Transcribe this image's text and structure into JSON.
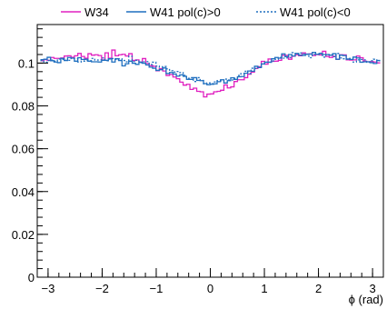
{
  "chart_data": {
    "type": "line",
    "style": "step-histogram",
    "title": "",
    "xlabel": "ϕ (rad)",
    "ylabel": "",
    "xlim": [
      -3.2,
      3.2
    ],
    "ylim": [
      0,
      0.118
    ],
    "grid": false,
    "legend_position": "top",
    "x_ticks": [
      -3,
      -2,
      -1,
      0,
      1,
      2,
      3
    ],
    "x_tick_labels": [
      "−3",
      "−2",
      "−1",
      "0",
      "1",
      "2",
      "3"
    ],
    "y_ticks": [
      0,
      0.02,
      0.04,
      0.06,
      0.08,
      0.1
    ],
    "y_tick_labels": [
      "0",
      "0.02",
      "0.04",
      "0.06",
      "0.08",
      "0.1"
    ],
    "bins": {
      "min": -3.14159,
      "max": 3.14159,
      "count": 100
    },
    "series": [
      {
        "name": "W34",
        "color": "#e020c0",
        "dash": "solid",
        "values": [
          0.1011,
          0.1016,
          0.1013,
          0.1026,
          0.1022,
          0.1022,
          0.1024,
          0.1033,
          0.1034,
          0.1027,
          0.1034,
          0.1045,
          0.1031,
          0.1023,
          0.1044,
          0.1037,
          0.1039,
          0.1035,
          0.1015,
          0.1048,
          0.1023,
          0.1061,
          0.1034,
          0.1039,
          0.1041,
          0.1033,
          0.1044,
          0.1012,
          0.1015,
          0.1005,
          0.1021,
          0.0998,
          0.0988,
          0.0985,
          0.0964,
          0.0974,
          0.0963,
          0.0942,
          0.0947,
          0.0935,
          0.0927,
          0.0911,
          0.0897,
          0.0901,
          0.0877,
          0.0883,
          0.0868,
          0.0866,
          0.0842,
          0.0855,
          0.0856,
          0.0866,
          0.0868,
          0.0873,
          0.0898,
          0.0884,
          0.0889,
          0.0914,
          0.0922,
          0.0922,
          0.0932,
          0.0948,
          0.0958,
          0.0975,
          0.0983,
          0.1008,
          0.0995,
          0.1019,
          0.1008,
          0.1009,
          0.1013,
          0.1036,
          0.1036,
          0.1018,
          0.1032,
          0.1039,
          0.1034,
          0.1048,
          0.1042,
          0.1043,
          0.1035,
          0.104,
          0.1038,
          0.1055,
          0.1031,
          0.1026,
          0.1032,
          0.1017,
          0.1039,
          0.1038,
          0.1015,
          0.1014,
          0.1015,
          0.1033,
          0.1025,
          0.1009,
          0.1006,
          0.1007,
          0.1005,
          0.1001
        ]
      },
      {
        "name": "W41 pol(c)>0",
        "color": "#1f6fbf",
        "dash": "solid",
        "values": [
          0.1016,
          0.1018,
          0.1027,
          0.1011,
          0.1005,
          0.1002,
          0.1022,
          0.1012,
          0.1026,
          0.1023,
          0.1009,
          0.1025,
          0.1017,
          0.1018,
          0.1009,
          0.1006,
          0.1006,
          0.1005,
          0.1013,
          0.1013,
          0.102,
          0.1005,
          0.102,
          0.1012,
          0.0987,
          0.0997,
          0.1009,
          0.0999,
          0.0994,
          0.1004,
          0.0999,
          0.0991,
          0.0981,
          0.0976,
          0.0966,
          0.0969,
          0.0977,
          0.0951,
          0.0956,
          0.0949,
          0.0939,
          0.0945,
          0.0938,
          0.0924,
          0.0924,
          0.0932,
          0.0919,
          0.0918,
          0.0904,
          0.0899,
          0.0901,
          0.0903,
          0.0913,
          0.0922,
          0.0907,
          0.0918,
          0.0931,
          0.0924,
          0.0936,
          0.0937,
          0.0953,
          0.0963,
          0.0962,
          0.0985,
          0.0979,
          0.0996,
          0.1004,
          0.1004,
          0.102,
          0.1026,
          0.1023,
          0.1043,
          0.103,
          0.104,
          0.1033,
          0.1045,
          0.1037,
          0.1036,
          0.1041,
          0.1042,
          0.105,
          0.1041,
          0.1045,
          0.104,
          0.104,
          0.1037,
          0.1044,
          0.1018,
          0.1037,
          0.1035,
          0.1019,
          0.1017,
          0.1028,
          0.1024,
          0.1004,
          0.1006,
          0.1006,
          0.1002,
          0.0998,
          0.1012
        ]
      },
      {
        "name": "W41 pol(c)<0",
        "color": "#1f6fbf",
        "dash": "dotted",
        "values": [
          0.1012,
          0.1004,
          0.1012,
          0.1014,
          0.1009,
          0.1019,
          0.1018,
          0.1013,
          0.1013,
          0.1023,
          0.1022,
          0.1005,
          0.1009,
          0.1011,
          0.1011,
          0.1022,
          0.1014,
          0.1015,
          0.1024,
          0.1011,
          0.1019,
          0.1021,
          0.1018,
          0.102,
          0.1012,
          0.1006,
          0.1032,
          0.1007,
          0.1013,
          0.1002,
          0.1006,
          0.1007,
          0.0993,
          0.1004,
          0.0986,
          0.0981,
          0.0984,
          0.0973,
          0.0964,
          0.0958,
          0.0961,
          0.0956,
          0.0943,
          0.0929,
          0.0932,
          0.0914,
          0.0932,
          0.0919,
          0.0903,
          0.0907,
          0.0904,
          0.0912,
          0.0918,
          0.0917,
          0.0925,
          0.0921,
          0.0921,
          0.0929,
          0.0942,
          0.0951,
          0.0962,
          0.0951,
          0.0976,
          0.0974,
          0.098,
          0.0996,
          0.1004,
          0.1004,
          0.101,
          0.1018,
          0.1026,
          0.1023,
          0.1024,
          0.1026,
          0.1049,
          0.1042,
          0.1047,
          0.1043,
          0.1042,
          0.1025,
          0.1041,
          0.1041,
          0.1046,
          0.1028,
          0.104,
          0.1038,
          0.103,
          0.1045,
          0.1024,
          0.102,
          0.1018,
          0.1022,
          0.1005,
          0.1015,
          0.1017,
          0.1015,
          0.1004,
          0.1011,
          0.1018,
          0.1011
        ]
      }
    ]
  }
}
